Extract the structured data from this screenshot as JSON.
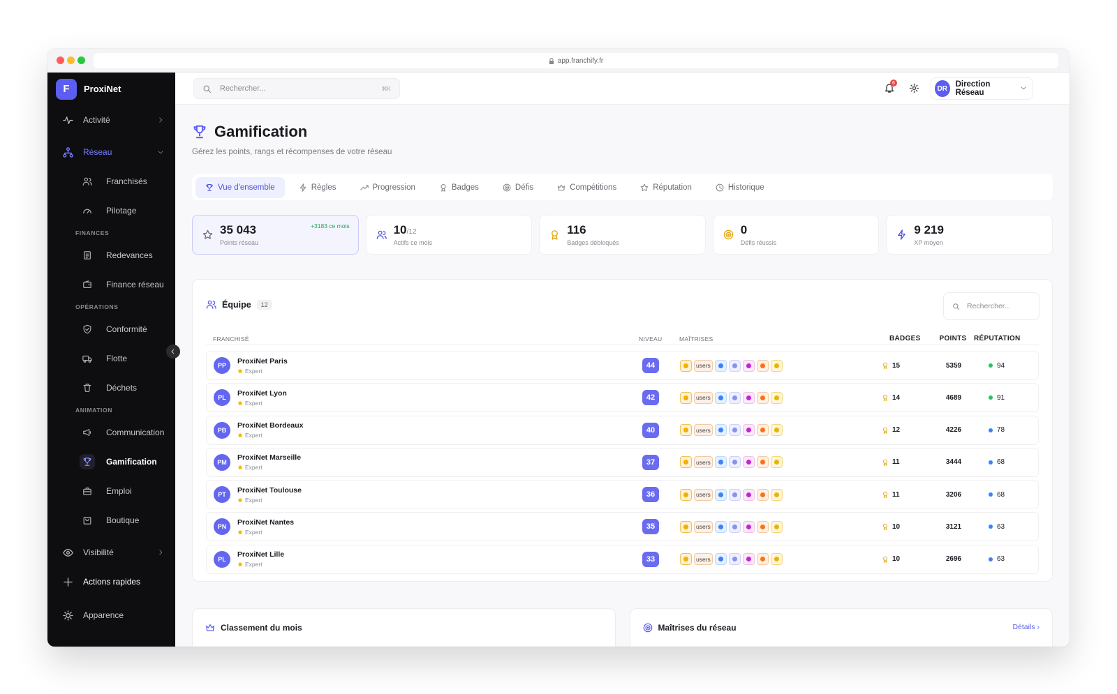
{
  "browser": {
    "url": "app.franchify.fr"
  },
  "sidebar": {
    "brand_initial": "F",
    "brand": "ProxiNet",
    "nav_top": [
      "Activité",
      "Réseau"
    ],
    "reseau_items": [
      "Franchisés",
      "Pilotage"
    ],
    "sections": [
      {
        "title": "FINANCES",
        "items": [
          "Redevances",
          "Finance réseau"
        ]
      },
      {
        "title": "OPÉRATIONS",
        "items": [
          "Conformité",
          "Flotte",
          "Déchets"
        ]
      },
      {
        "title": "ANIMATION",
        "items": [
          "Communication",
          "Gamification",
          "Emploi",
          "Boutique"
        ]
      }
    ],
    "nav_bottom": [
      "Visibilité",
      "Actions rapides",
      "Apparence"
    ]
  },
  "topbar": {
    "search_placeholder": "Rechercher...",
    "shortcut": "⌘K",
    "notifications": 6,
    "user_initials": "DR",
    "user_name": "Direction Réseau"
  },
  "header": {
    "title": "Gamification",
    "subtitle": "Gérez les points, rangs et récompenses de votre réseau"
  },
  "tabs": [
    "Vue d'ensemble",
    "Règles",
    "Progression",
    "Badges",
    "Défis",
    "Compétitions",
    "Réputation",
    "Historique"
  ],
  "stats": [
    {
      "value": "35 043",
      "label": "Points réseau",
      "note": "+3183 ce mois"
    },
    {
      "value": "10",
      "suffix": "/12",
      "label": "Actifs ce mois"
    },
    {
      "value": "116",
      "label": "Badges débloqués"
    },
    {
      "value": "0",
      "label": "Défis réussis"
    },
    {
      "value": "9 219",
      "label": "XP moyen"
    }
  ],
  "team": {
    "title": "Équipe",
    "count": 12,
    "search_placeholder": "Rechercher...",
    "columns": [
      "FRANCHISÉ",
      "NIVEAU",
      "MAÎTRISES",
      "BADGES",
      "POINTS",
      "RÉPUTATION"
    ],
    "rows": [
      {
        "initials": "PP",
        "name": "ProxiNet Paris",
        "rank": "Expert",
        "level": 44,
        "mastery_tag": "users",
        "badges": 15,
        "points": 5359,
        "reputation": 94,
        "reputation_color": "#22c55e"
      },
      {
        "initials": "PL",
        "name": "ProxiNet Lyon",
        "rank": "Expert",
        "level": 42,
        "mastery_tag": "users",
        "badges": 14,
        "points": 4689,
        "reputation": 91,
        "reputation_color": "#22c55e"
      },
      {
        "initials": "PB",
        "name": "ProxiNet Bordeaux",
        "rank": "Expert",
        "level": 40,
        "mastery_tag": "users",
        "badges": 12,
        "points": 4226,
        "reputation": 78,
        "reputation_color": "#3b82f6"
      },
      {
        "initials": "PM",
        "name": "ProxiNet Marseille",
        "rank": "Expert",
        "level": 37,
        "mastery_tag": "users",
        "badges": 11,
        "points": 3444,
        "reputation": 68,
        "reputation_color": "#3b82f6"
      },
      {
        "initials": "PT",
        "name": "ProxiNet Toulouse",
        "rank": "Expert",
        "level": 36,
        "mastery_tag": "users",
        "badges": 11,
        "points": 3206,
        "reputation": 68,
        "reputation_color": "#3b82f6"
      },
      {
        "initials": "PN",
        "name": "ProxiNet Nantes",
        "rank": "Expert",
        "level": 35,
        "mastery_tag": "users",
        "badges": 10,
        "points": 3121,
        "reputation": 63,
        "reputation_color": "#3b82f6"
      },
      {
        "initials": "PL",
        "name": "ProxiNet Lille",
        "rank": "Expert",
        "level": 33,
        "mastery_tag": "users",
        "badges": 10,
        "points": 2696,
        "reputation": 63,
        "reputation_color": "#3b82f6"
      }
    ]
  },
  "panels": [
    {
      "title": "Classement du mois"
    },
    {
      "title": "Maîtrises du réseau",
      "link": "Détails"
    }
  ]
}
